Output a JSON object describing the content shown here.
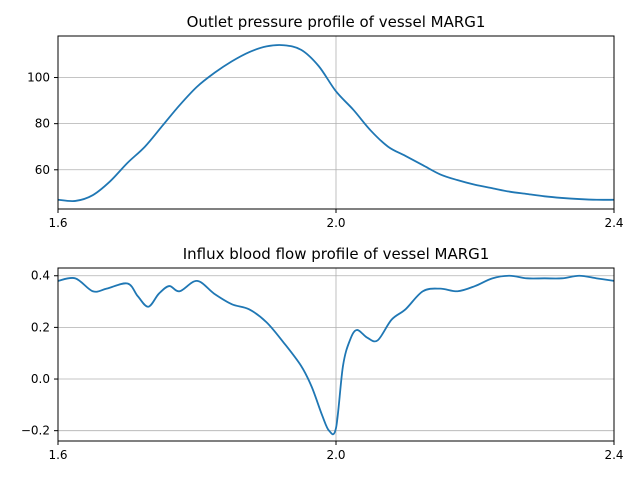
{
  "chart_data": [
    {
      "type": "line",
      "title": "Outlet pressure profile of vessel MARG1",
      "xlabel": "",
      "ylabel": "",
      "xlim": [
        1.6,
        2.4
      ],
      "ylim": [
        43,
        118
      ],
      "xticks": [
        1.6,
        2.0,
        2.4
      ],
      "xtick_labels": [
        "1.6",
        "2.0",
        "2.4"
      ],
      "yticks": [
        60,
        80,
        100
      ],
      "ytick_labels": [
        "60",
        "80",
        "100"
      ],
      "grid": true,
      "color": "#1f77b4",
      "series": [
        {
          "x": [
            1.6,
            1.625,
            1.65,
            1.675,
            1.7,
            1.725,
            1.75,
            1.775,
            1.8,
            1.825,
            1.85,
            1.875,
            1.9,
            1.925,
            1.95,
            1.975,
            2.0,
            2.025,
            2.05,
            2.075,
            2.1,
            2.125,
            2.15,
            2.175,
            2.2,
            2.225,
            2.25,
            2.275,
            2.3,
            2.325,
            2.35,
            2.375,
            2.4
          ],
          "y": [
            47,
            46.5,
            49,
            55,
            63,
            70,
            79,
            88,
            96,
            102,
            107,
            111,
            113.5,
            114,
            112,
            105,
            94,
            86,
            77,
            70,
            66,
            62,
            58,
            55.5,
            53.5,
            52,
            50.5,
            49.5,
            48.5,
            47.8,
            47.3,
            47,
            47
          ]
        }
      ]
    },
    {
      "type": "line",
      "title": "Influx blood flow profile of vessel MARG1",
      "xlabel": "",
      "ylabel": "",
      "xlim": [
        1.6,
        2.4
      ],
      "ylim": [
        -0.24,
        0.43
      ],
      "xticks": [
        1.6,
        2.0,
        2.4
      ],
      "xtick_labels": [
        "1.6",
        "2.0",
        "2.4"
      ],
      "yticks": [
        -0.2,
        0.0,
        0.2,
        0.4
      ],
      "ytick_labels": [
        "−0.2",
        "0.0",
        "0.2",
        "0.4"
      ],
      "grid": true,
      "color": "#1f77b4",
      "series": [
        {
          "x": [
            1.6,
            1.625,
            1.65,
            1.67,
            1.7,
            1.715,
            1.73,
            1.745,
            1.76,
            1.775,
            1.8,
            1.825,
            1.85,
            1.875,
            1.9,
            1.925,
            1.95,
            1.965,
            1.98,
            1.99,
            2.0,
            2.01,
            2.02,
            2.03,
            2.045,
            2.06,
            2.08,
            2.1,
            2.125,
            2.15,
            2.175,
            2.2,
            2.225,
            2.25,
            2.275,
            2.3,
            2.325,
            2.35,
            2.375,
            2.4
          ],
          "y": [
            0.38,
            0.39,
            0.34,
            0.35,
            0.37,
            0.32,
            0.28,
            0.33,
            0.36,
            0.34,
            0.38,
            0.33,
            0.29,
            0.27,
            0.22,
            0.14,
            0.05,
            -0.03,
            -0.14,
            -0.2,
            -0.19,
            0.05,
            0.15,
            0.19,
            0.16,
            0.15,
            0.23,
            0.27,
            0.34,
            0.35,
            0.34,
            0.36,
            0.39,
            0.4,
            0.39,
            0.39,
            0.39,
            0.4,
            0.39,
            0.38
          ]
        }
      ]
    }
  ]
}
